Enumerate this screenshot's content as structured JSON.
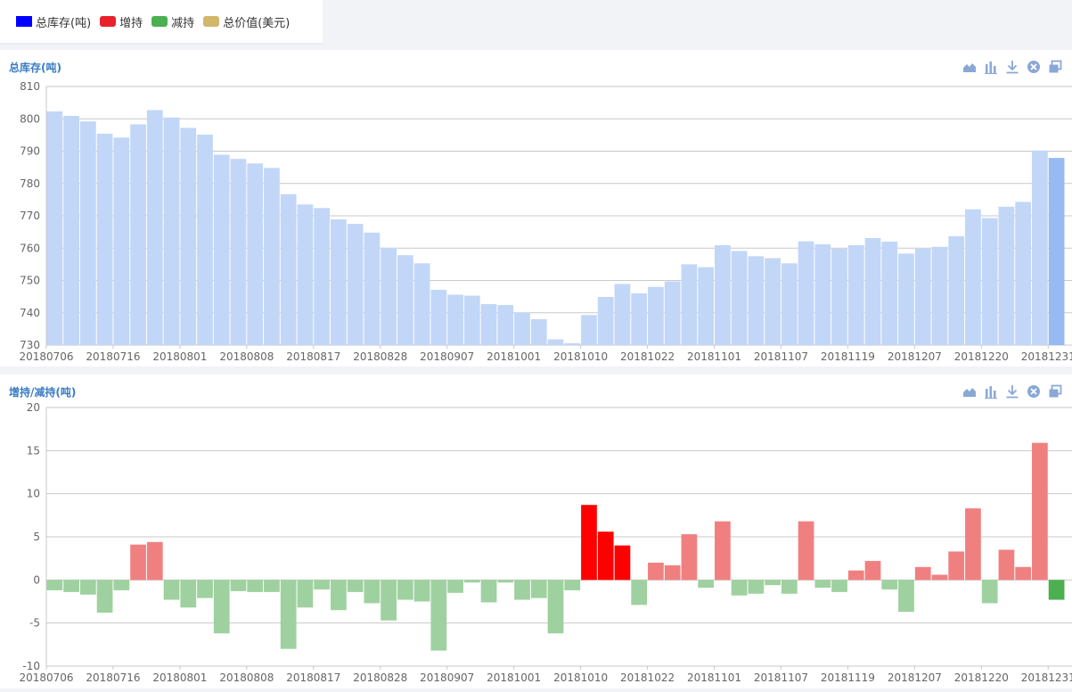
{
  "legend": {
    "items": [
      {
        "label": "总库存(吨)",
        "color": "#0000ff"
      },
      {
        "label": "增持",
        "color": "#e8222a"
      },
      {
        "label": "减持",
        "color": "#4caf50"
      },
      {
        "label": "总价值(美元)",
        "color": "#d1b76b"
      }
    ]
  },
  "panel1": {
    "title": "总库存(吨)"
  },
  "panel2": {
    "title": "增持/减持(吨)"
  },
  "toolbar_icons": [
    "area-chart-icon",
    "bar-chart-icon",
    "download-icon",
    "close-circle-icon",
    "restore-window-icon"
  ],
  "colors": {
    "inventory_bar": "#c2d6f8",
    "inventory_highlight": "#97baf3",
    "increase_bar": "#f08080",
    "increase_highlight": "#ff0000",
    "decrease_bar": "#9ed19f",
    "decrease_highlight": "#4caf50",
    "title": "#3a7cc4"
  },
  "chart_data": [
    {
      "type": "bar",
      "title": "总库存(吨)",
      "x_tick_labels": [
        "20180706",
        "20180716",
        "20180801",
        "20180808",
        "20180817",
        "20180828",
        "20180907",
        "20181001",
        "20181010",
        "20181022",
        "20181101",
        "20181107",
        "20181119",
        "20181207",
        "20181220",
        "20181231"
      ],
      "ylim": [
        730,
        810
      ],
      "y_ticks": [
        730,
        740,
        750,
        760,
        770,
        780,
        790,
        800,
        810
      ],
      "grid": true,
      "highlight_last": true,
      "values": [
        802.3,
        800.9,
        799.2,
        795.4,
        794.2,
        798.3,
        802.7,
        800.4,
        797.2,
        795.1,
        788.9,
        787.6,
        786.2,
        784.8,
        776.7,
        773.5,
        772.4,
        768.9,
        767.5,
        764.8,
        760.1,
        757.8,
        755.3,
        747.1,
        745.6,
        745.3,
        742.7,
        742.4,
        740.1,
        738.0,
        731.8,
        730.6,
        739.3,
        744.9,
        748.9,
        746.0,
        748.0,
        749.7,
        755.0,
        754.1,
        760.9,
        759.1,
        757.5,
        756.9,
        755.3,
        762.1,
        761.2,
        759.8,
        760.9,
        763.1,
        762.0,
        758.3,
        759.8,
        760.4,
        763.7,
        772.0,
        769.3,
        772.8,
        774.3,
        790.2,
        787.9
      ]
    },
    {
      "type": "bar",
      "title": "增持/减持(吨)",
      "x_tick_labels": [
        "20180706",
        "20180716",
        "20180801",
        "20180808",
        "20180817",
        "20180828",
        "20180907",
        "20181001",
        "20181010",
        "20181022",
        "20181101",
        "20181107",
        "20181119",
        "20181207",
        "20181220",
        "20181231"
      ],
      "ylim": [
        -10,
        20
      ],
      "y_ticks": [
        -10,
        -5,
        0,
        5,
        10,
        15,
        20
      ],
      "grid": true,
      "highlighted_indices": [
        32,
        33,
        34,
        60
      ],
      "values": [
        -1.2,
        -1.4,
        -1.7,
        -3.8,
        -1.2,
        4.1,
        4.4,
        -2.3,
        -3.2,
        -2.1,
        -6.2,
        -1.3,
        -1.4,
        -1.4,
        -8.0,
        -3.2,
        -1.1,
        -3.5,
        -1.4,
        -2.7,
        -4.7,
        -2.3,
        -2.5,
        -8.2,
        -1.5,
        -0.3,
        -2.6,
        -0.3,
        -2.3,
        -2.1,
        -6.2,
        -1.2,
        8.7,
        5.6,
        4.0,
        -2.9,
        2.0,
        1.7,
        5.3,
        -0.9,
        6.8,
        -1.8,
        -1.6,
        -0.6,
        -1.6,
        6.8,
        -0.9,
        -1.4,
        1.1,
        2.2,
        -1.1,
        -3.7,
        1.5,
        0.6,
        3.3,
        8.3,
        -2.7,
        3.5,
        1.5,
        15.9,
        -2.3
      ]
    }
  ]
}
